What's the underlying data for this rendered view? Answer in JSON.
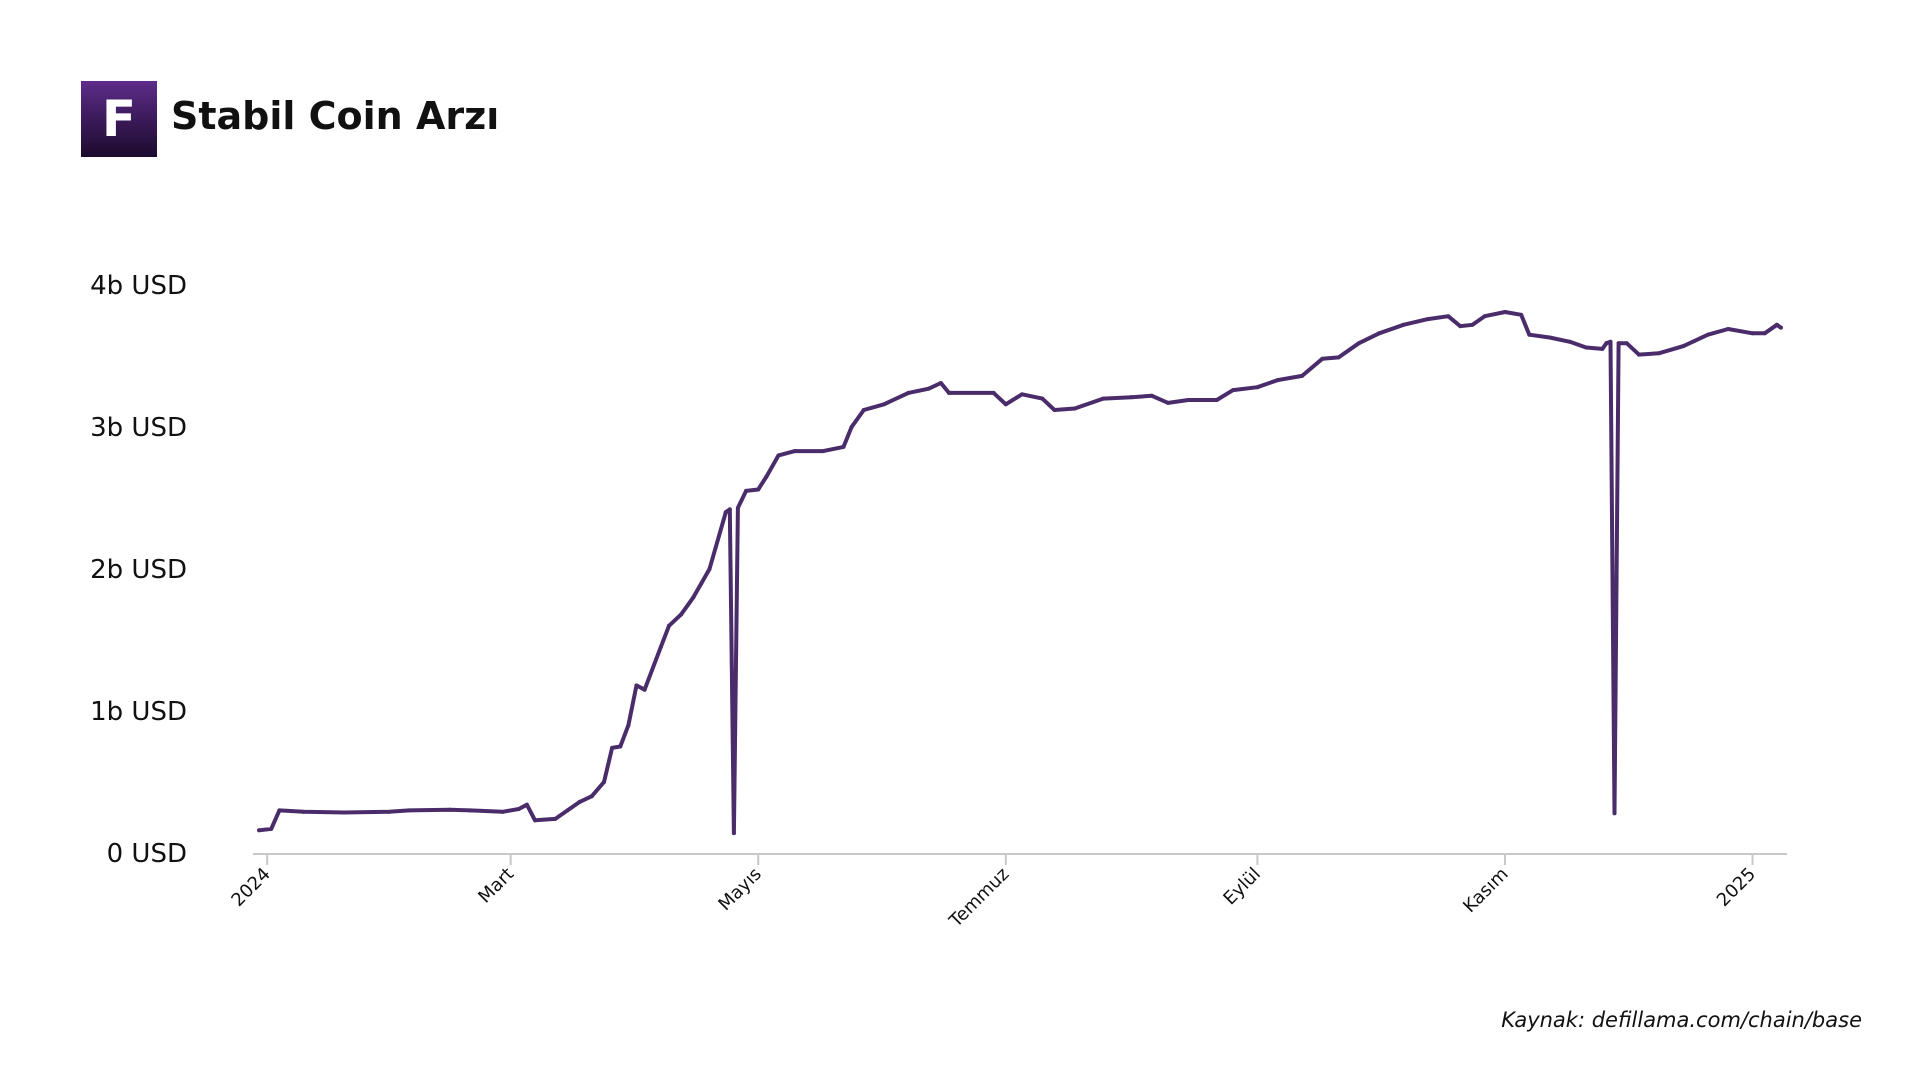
{
  "header": {
    "logo_letter": "F",
    "title": "Stabil Coin Arzı"
  },
  "footer": {
    "source": "Kaynak: defillama.com/chain/base"
  },
  "colors": {
    "line": "#4a2c6b",
    "axis": "#c8c8c8",
    "text": "#111111",
    "logo_top": "#5e2d8a",
    "logo_bottom": "#1d0b2e"
  },
  "chart_data": {
    "type": "line",
    "title": "Stabil Coin Arzı",
    "xlabel": "",
    "ylabel": "",
    "ylim": [
      0,
      4000000000
    ],
    "xlim": [
      "2023-12-29",
      "2025-01-09"
    ],
    "grid": false,
    "y_ticks": [
      {
        "value": 0,
        "label": "0 USD"
      },
      {
        "value": 1000000000,
        "label": "1b USD"
      },
      {
        "value": 2000000000,
        "label": "2b USD"
      },
      {
        "value": 3000000000,
        "label": "3b USD"
      },
      {
        "value": 4000000000,
        "label": "4b USD"
      }
    ],
    "x_ticks": [
      {
        "date": "2024-01-01",
        "label": "2024"
      },
      {
        "date": "2024-03-01",
        "label": "Mart"
      },
      {
        "date": "2024-05-01",
        "label": "Mayıs"
      },
      {
        "date": "2024-07-01",
        "label": "Temmuz"
      },
      {
        "date": "2024-09-01",
        "label": "Eylül"
      },
      {
        "date": "2024-11-01",
        "label": "Kasım"
      },
      {
        "date": "2025-01-01",
        "label": "2025"
      }
    ],
    "series": [
      {
        "points": [
          [
            "2023-12-30",
            160000000
          ],
          [
            "2024-01-02",
            170000000
          ],
          [
            "2024-01-04",
            300000000
          ],
          [
            "2024-01-10",
            290000000
          ],
          [
            "2024-01-20",
            285000000
          ],
          [
            "2024-01-31",
            290000000
          ],
          [
            "2024-02-05",
            300000000
          ],
          [
            "2024-02-15",
            305000000
          ],
          [
            "2024-02-20",
            300000000
          ],
          [
            "2024-02-28",
            290000000
          ],
          [
            "2024-03-03",
            310000000
          ],
          [
            "2024-03-05",
            340000000
          ],
          [
            "2024-03-07",
            230000000
          ],
          [
            "2024-03-12",
            240000000
          ],
          [
            "2024-03-15",
            300000000
          ],
          [
            "2024-03-18",
            360000000
          ],
          [
            "2024-03-21",
            400000000
          ],
          [
            "2024-03-24",
            500000000
          ],
          [
            "2024-03-26",
            740000000
          ],
          [
            "2024-03-28",
            750000000
          ],
          [
            "2024-03-30",
            900000000
          ],
          [
            "2024-04-01",
            1180000000
          ],
          [
            "2024-04-03",
            1150000000
          ],
          [
            "2024-04-07",
            1450000000
          ],
          [
            "2024-04-09",
            1600000000
          ],
          [
            "2024-04-12",
            1680000000
          ],
          [
            "2024-04-15",
            1800000000
          ],
          [
            "2024-04-17",
            1900000000
          ],
          [
            "2024-04-19",
            2000000000
          ],
          [
            "2024-04-23",
            2400000000
          ],
          [
            "2024-04-24",
            2420000000
          ],
          [
            "2024-04-25",
            140000000
          ],
          [
            "2024-04-26",
            2430000000
          ],
          [
            "2024-04-28",
            2550000000
          ],
          [
            "2024-05-01",
            2560000000
          ],
          [
            "2024-05-03",
            2650000000
          ],
          [
            "2024-05-06",
            2800000000
          ],
          [
            "2024-05-10",
            2830000000
          ],
          [
            "2024-05-17",
            2830000000
          ],
          [
            "2024-05-22",
            2860000000
          ],
          [
            "2024-05-24",
            3000000000
          ],
          [
            "2024-05-27",
            3120000000
          ],
          [
            "2024-06-01",
            3160000000
          ],
          [
            "2024-06-07",
            3240000000
          ],
          [
            "2024-06-12",
            3270000000
          ],
          [
            "2024-06-15",
            3310000000
          ],
          [
            "2024-06-17",
            3240000000
          ],
          [
            "2024-06-28",
            3240000000
          ],
          [
            "2024-07-01",
            3160000000
          ],
          [
            "2024-07-05",
            3230000000
          ],
          [
            "2024-07-10",
            3200000000
          ],
          [
            "2024-07-13",
            3120000000
          ],
          [
            "2024-07-18",
            3130000000
          ],
          [
            "2024-07-25",
            3200000000
          ],
          [
            "2024-08-01",
            3210000000
          ],
          [
            "2024-08-06",
            3220000000
          ],
          [
            "2024-08-10",
            3170000000
          ],
          [
            "2024-08-15",
            3190000000
          ],
          [
            "2024-08-22",
            3190000000
          ],
          [
            "2024-08-26",
            3260000000
          ],
          [
            "2024-09-01",
            3280000000
          ],
          [
            "2024-09-06",
            3330000000
          ],
          [
            "2024-09-12",
            3360000000
          ],
          [
            "2024-09-17",
            3480000000
          ],
          [
            "2024-09-21",
            3490000000
          ],
          [
            "2024-09-26",
            3590000000
          ],
          [
            "2024-10-01",
            3660000000
          ],
          [
            "2024-10-07",
            3720000000
          ],
          [
            "2024-10-13",
            3760000000
          ],
          [
            "2024-10-18",
            3780000000
          ],
          [
            "2024-10-21",
            3710000000
          ],
          [
            "2024-10-24",
            3720000000
          ],
          [
            "2024-10-27",
            3780000000
          ],
          [
            "2024-11-01",
            3810000000
          ],
          [
            "2024-11-05",
            3790000000
          ],
          [
            "2024-11-07",
            3650000000
          ],
          [
            "2024-11-12",
            3630000000
          ],
          [
            "2024-11-17",
            3600000000
          ],
          [
            "2024-11-21",
            3560000000
          ],
          [
            "2024-11-25",
            3550000000
          ],
          [
            "2024-11-26",
            3590000000
          ],
          [
            "2024-11-27",
            3600000000
          ],
          [
            "2024-11-28",
            280000000
          ],
          [
            "2024-11-29",
            3590000000
          ],
          [
            "2024-12-01",
            3590000000
          ],
          [
            "2024-12-04",
            3510000000
          ],
          [
            "2024-12-09",
            3520000000
          ],
          [
            "2024-12-15",
            3570000000
          ],
          [
            "2024-12-21",
            3650000000
          ],
          [
            "2024-12-26",
            3690000000
          ],
          [
            "2025-01-01",
            3660000000
          ],
          [
            "2025-01-04",
            3660000000
          ],
          [
            "2025-01-07",
            3720000000
          ],
          [
            "2025-01-08",
            3700000000
          ]
        ]
      }
    ]
  }
}
